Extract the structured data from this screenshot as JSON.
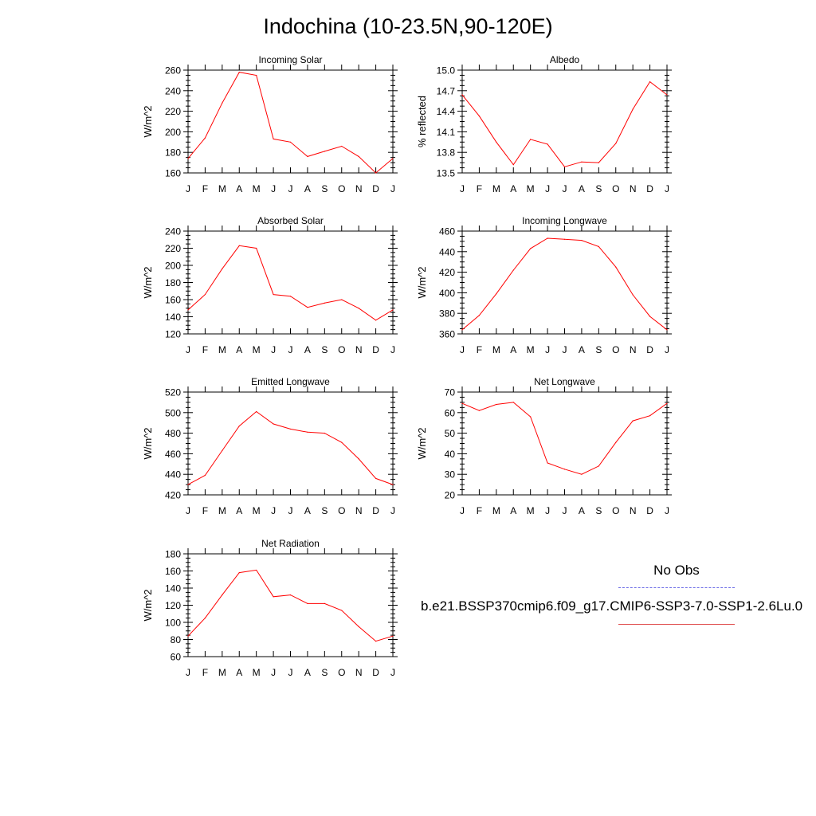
{
  "page_title": "Indochina (10-23.5N,90-120E)",
  "legend": {
    "obs_label": "No Obs",
    "obs_color": "#6a6ae6",
    "model_label": "b.e21.BSSP370cmip6.f09_g17.CMIP6-SSP3-7.0-SSP1-2.6Lu.0",
    "model_color": "#e05050"
  },
  "chart_data": [
    {
      "type": "line",
      "title": "Incoming Solar",
      "ylabel": "W/m^2",
      "categories": [
        "J",
        "F",
        "M",
        "A",
        "M",
        "J",
        "J",
        "A",
        "S",
        "O",
        "N",
        "D",
        "J"
      ],
      "ylim": [
        160,
        260
      ],
      "yticks": [
        "160",
        "180",
        "200",
        "220",
        "240",
        "260"
      ],
      "values": [
        174,
        194,
        228,
        258,
        255,
        193,
        190,
        176,
        181,
        186,
        176,
        160,
        174
      ],
      "color": "#ff0000"
    },
    {
      "type": "line",
      "title": "Albedo",
      "ylabel": "% reflected",
      "categories": [
        "J",
        "F",
        "M",
        "A",
        "M",
        "J",
        "J",
        "A",
        "S",
        "O",
        "N",
        "D",
        "J"
      ],
      "ylim": [
        13.5,
        15.0
      ],
      "yticks": [
        "13.5",
        "13.8",
        "14.1",
        "14.4",
        "14.7",
        "15.0"
      ],
      "values": [
        14.64,
        14.33,
        13.95,
        13.62,
        13.99,
        13.92,
        13.59,
        13.66,
        13.65,
        13.93,
        14.43,
        14.83,
        14.64
      ],
      "color": "#ff0000"
    },
    {
      "type": "line",
      "title": "Absorbed Solar",
      "ylabel": "W/m^2",
      "categories": [
        "J",
        "F",
        "M",
        "A",
        "M",
        "J",
        "J",
        "A",
        "S",
        "O",
        "N",
        "D",
        "J"
      ],
      "ylim": [
        120,
        240
      ],
      "yticks": [
        "120",
        "140",
        "160",
        "180",
        "200",
        "220",
        "240"
      ],
      "values": [
        148,
        166,
        196,
        223,
        220,
        166,
        164,
        151,
        156,
        160,
        150,
        136,
        148
      ],
      "color": "#ff0000"
    },
    {
      "type": "line",
      "title": "Incoming Longwave",
      "ylabel": "W/m^2",
      "categories": [
        "J",
        "F",
        "M",
        "A",
        "M",
        "J",
        "J",
        "A",
        "S",
        "O",
        "N",
        "D",
        "J"
      ],
      "ylim": [
        360,
        460
      ],
      "yticks": [
        "360",
        "380",
        "400",
        "420",
        "440",
        "460"
      ],
      "values": [
        364,
        378,
        399,
        422,
        443,
        453,
        452,
        451,
        445,
        425,
        398,
        377,
        364
      ],
      "color": "#ff0000"
    },
    {
      "type": "line",
      "title": "Emitted Longwave",
      "ylabel": "W/m^2",
      "categories": [
        "J",
        "F",
        "M",
        "A",
        "M",
        "J",
        "J",
        "A",
        "S",
        "O",
        "N",
        "D",
        "J"
      ],
      "ylim": [
        420,
        520
      ],
      "yticks": [
        "420",
        "440",
        "460",
        "480",
        "500",
        "520"
      ],
      "values": [
        430,
        439,
        463,
        487,
        501,
        489,
        484,
        481,
        480,
        471,
        455,
        436,
        430
      ],
      "color": "#ff0000"
    },
    {
      "type": "line",
      "title": "Net Longwave",
      "ylabel": "W/m^2",
      "categories": [
        "J",
        "F",
        "M",
        "A",
        "M",
        "J",
        "J",
        "A",
        "S",
        "O",
        "N",
        "D",
        "J"
      ],
      "ylim": [
        20,
        70
      ],
      "yticks": [
        "20",
        "30",
        "40",
        "50",
        "60",
        "70"
      ],
      "values": [
        64.5,
        61,
        64,
        65,
        58,
        35.5,
        32.5,
        30,
        34,
        45.5,
        56,
        58.5,
        64.5
      ],
      "color": "#ff0000"
    },
    {
      "type": "line",
      "title": "Net Radiation",
      "ylabel": "W/m^2",
      "categories": [
        "J",
        "F",
        "M",
        "A",
        "M",
        "J",
        "J",
        "A",
        "S",
        "O",
        "N",
        "D",
        "J"
      ],
      "ylim": [
        60,
        180
      ],
      "yticks": [
        "60",
        "80",
        "100",
        "120",
        "140",
        "160",
        "180"
      ],
      "values": [
        84,
        105,
        132,
        158,
        161,
        130,
        132,
        122,
        122,
        114,
        95,
        78,
        84
      ],
      "color": "#ff0000"
    }
  ]
}
